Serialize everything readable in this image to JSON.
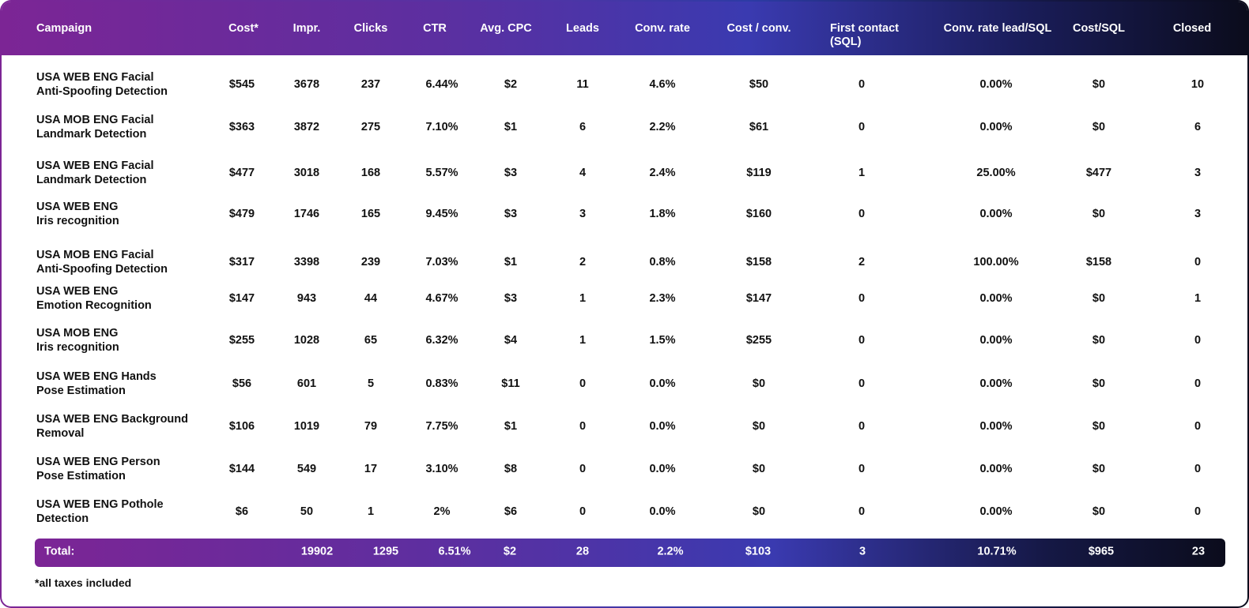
{
  "columns": [
    "Campaign",
    "Cost*",
    "Impr.",
    "Clicks",
    "CTR",
    "Avg. CPC",
    "Leads",
    "Conv. rate",
    "Cost / conv.",
    "First contact\n(SQL)",
    "Conv. rate lead/SQL",
    "Cost/SQL",
    "Closed"
  ],
  "rows": [
    [
      "USA WEB ENG Facial\nAnti-Spoofing Detection",
      "$545",
      "3678",
      "237",
      "6.44%",
      "$2",
      "11",
      "4.6%",
      "$50",
      "0",
      "0.00%",
      "$0",
      "10"
    ],
    [
      "USA MOB ENG Facial\nLandmark Detection",
      "$363",
      "3872",
      "275",
      "7.10%",
      "$1",
      "6",
      "2.2%",
      "$61",
      "0",
      "0.00%",
      "$0",
      "6"
    ],
    [
      "USA WEB ENG Facial\nLandmark Detection",
      "$477",
      "3018",
      "168",
      "5.57%",
      "$3",
      "4",
      "2.4%",
      "$119",
      "1",
      "25.00%",
      "$477",
      "3"
    ],
    [
      "USA WEB ENG\nIris recognition",
      "$479",
      "1746",
      "165",
      "9.45%",
      "$3",
      "3",
      "1.8%",
      "$160",
      "0",
      "0.00%",
      "$0",
      "3"
    ],
    [
      "USA MOB ENG Facial\nAnti-Spoofing Detection",
      "$317",
      "3398",
      "239",
      "7.03%",
      "$1",
      "2",
      "0.8%",
      "$158",
      "2",
      "100.00%",
      "$158",
      "0"
    ],
    [
      "USA WEB ENG\nEmotion Recognition",
      "$147",
      "943",
      "44",
      "4.67%",
      "$3",
      "1",
      "2.3%",
      "$147",
      "0",
      "0.00%",
      "$0",
      "1"
    ],
    [
      "USA MOB ENG\nIris recognition",
      "$255",
      "1028",
      "65",
      "6.32%",
      "$4",
      "1",
      "1.5%",
      "$255",
      "0",
      "0.00%",
      "$0",
      "0"
    ],
    [
      "USA WEB ENG Hands\nPose Estimation",
      "$56",
      "601",
      "5",
      "0.83%",
      "$11",
      "0",
      "0.0%",
      "$0",
      "0",
      "0.00%",
      "$0",
      "0"
    ],
    [
      "USA WEB ENG Background\nRemoval",
      "$106",
      "1019",
      "79",
      "7.75%",
      "$1",
      "0",
      "0.0%",
      "$0",
      "0",
      "0.00%",
      "$0",
      "0"
    ],
    [
      "USA WEB ENG Person\nPose Estimation",
      "$144",
      "549",
      "17",
      "3.10%",
      "$8",
      "0",
      "0.0%",
      "$0",
      "0",
      "0.00%",
      "$0",
      "0"
    ],
    [
      "USA WEB ENG Pothole\nDetection",
      "$6",
      "50",
      "1",
      "2%",
      "$6",
      "0",
      "0.0%",
      "$0",
      "0",
      "0.00%",
      "$0",
      "0"
    ]
  ],
  "total": {
    "label": "Total:",
    "values": [
      "",
      "19902",
      "1295",
      "6.51%",
      "$2",
      "28",
      "2.2%",
      "$103",
      "3",
      "10.71%",
      "$965",
      "23"
    ]
  },
  "footnote": "*all taxes included"
}
